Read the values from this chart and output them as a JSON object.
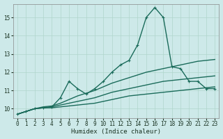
{
  "bg_color": "#cde9e9",
  "grid_color": "#b0d5cc",
  "line_color": "#1a6b5a",
  "xlabel": "Humidex (Indice chaleur)",
  "xlim": [
    -0.5,
    23.5
  ],
  "ylim": [
    9.5,
    15.75
  ],
  "yticks": [
    10,
    11,
    12,
    13,
    14,
    15
  ],
  "xticks": [
    0,
    1,
    2,
    3,
    4,
    5,
    6,
    7,
    8,
    9,
    10,
    11,
    12,
    13,
    14,
    15,
    16,
    17,
    18,
    19,
    20,
    21,
    22,
    23
  ],
  "series": [
    {
      "x": [
        0,
        1,
        2,
        3,
        4,
        5,
        6,
        7,
        8,
        9,
        10,
        11,
        12,
        13,
        14,
        15,
        16,
        17,
        18,
        19,
        20,
        21,
        22,
        23
      ],
      "y": [
        9.7,
        9.85,
        10.0,
        10.05,
        10.05,
        10.1,
        10.15,
        10.2,
        10.25,
        10.3,
        10.4,
        10.5,
        10.6,
        10.7,
        10.75,
        10.8,
        10.85,
        10.9,
        10.95,
        11.0,
        11.05,
        11.1,
        11.15,
        11.2
      ],
      "marker": null,
      "linestyle": "-",
      "linewidth": 1.0
    },
    {
      "x": [
        0,
        1,
        2,
        3,
        4,
        5,
        6,
        7,
        8,
        9,
        10,
        11,
        12,
        13,
        14,
        15,
        16,
        17,
        18,
        19,
        20,
        21,
        22,
        23
      ],
      "y": [
        9.7,
        9.85,
        10.0,
        10.05,
        10.1,
        10.2,
        10.3,
        10.4,
        10.5,
        10.6,
        10.75,
        10.9,
        11.0,
        11.1,
        11.2,
        11.3,
        11.4,
        11.5,
        11.55,
        11.6,
        11.65,
        11.7,
        11.75,
        11.8
      ],
      "marker": null,
      "linestyle": "-",
      "linewidth": 1.0
    },
    {
      "x": [
        0,
        1,
        2,
        3,
        4,
        5,
        6,
        7,
        8,
        9,
        10,
        11,
        12,
        13,
        14,
        15,
        16,
        17,
        18,
        19,
        20,
        21,
        22,
        23
      ],
      "y": [
        9.7,
        9.85,
        10.0,
        10.1,
        10.15,
        10.3,
        10.5,
        10.7,
        10.85,
        11.0,
        11.2,
        11.4,
        11.55,
        11.7,
        11.85,
        12.0,
        12.1,
        12.2,
        12.3,
        12.4,
        12.5,
        12.6,
        12.65,
        12.7
      ],
      "marker": null,
      "linestyle": "-",
      "linewidth": 1.0
    },
    {
      "x": [
        0,
        1,
        2,
        3,
        4,
        5,
        6,
        7,
        8,
        9,
        10,
        11,
        12,
        13,
        14,
        15,
        16,
        17,
        18,
        19,
        20,
        21,
        22,
        23
      ],
      "y": [
        9.7,
        9.85,
        10.0,
        10.05,
        10.1,
        10.6,
        11.5,
        11.1,
        10.8,
        11.1,
        11.5,
        12.0,
        12.4,
        12.65,
        13.5,
        15.0,
        15.55,
        15.0,
        12.3,
        12.2,
        11.5,
        11.5,
        11.1,
        11.1
      ],
      "marker": "+",
      "linestyle": "-",
      "linewidth": 1.0
    }
  ]
}
